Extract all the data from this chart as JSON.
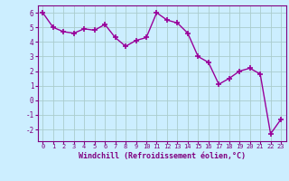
{
  "x": [
    0,
    1,
    2,
    3,
    4,
    5,
    6,
    7,
    8,
    9,
    10,
    11,
    12,
    13,
    14,
    15,
    16,
    17,
    18,
    19,
    20,
    21,
    22,
    23
  ],
  "y": [
    6.0,
    5.0,
    4.7,
    4.6,
    4.9,
    4.8,
    5.2,
    4.3,
    3.7,
    4.1,
    4.3,
    6.0,
    5.5,
    5.3,
    4.6,
    3.0,
    2.6,
    1.1,
    1.5,
    2.0,
    2.2,
    1.8,
    -2.3,
    -1.3
  ],
  "line_color": "#990099",
  "marker": "+",
  "marker_size": 4,
  "linewidth": 1.0,
  "bg_color": "#cceeff",
  "grid_color": "#aacccc",
  "xlabel": "Windchill (Refroidissement éolien,°C)",
  "xlabel_color": "#800080",
  "tick_color": "#800080",
  "label_color": "#800080",
  "ylim": [
    -2.8,
    6.5
  ],
  "xlim": [
    -0.5,
    23.5
  ],
  "yticks": [
    -2,
    -1,
    0,
    1,
    2,
    3,
    4,
    5,
    6
  ],
  "xticks": [
    0,
    1,
    2,
    3,
    4,
    5,
    6,
    7,
    8,
    9,
    10,
    11,
    12,
    13,
    14,
    15,
    16,
    17,
    18,
    19,
    20,
    21,
    22,
    23
  ],
  "title_color": "#800080",
  "spine_color": "#800080"
}
